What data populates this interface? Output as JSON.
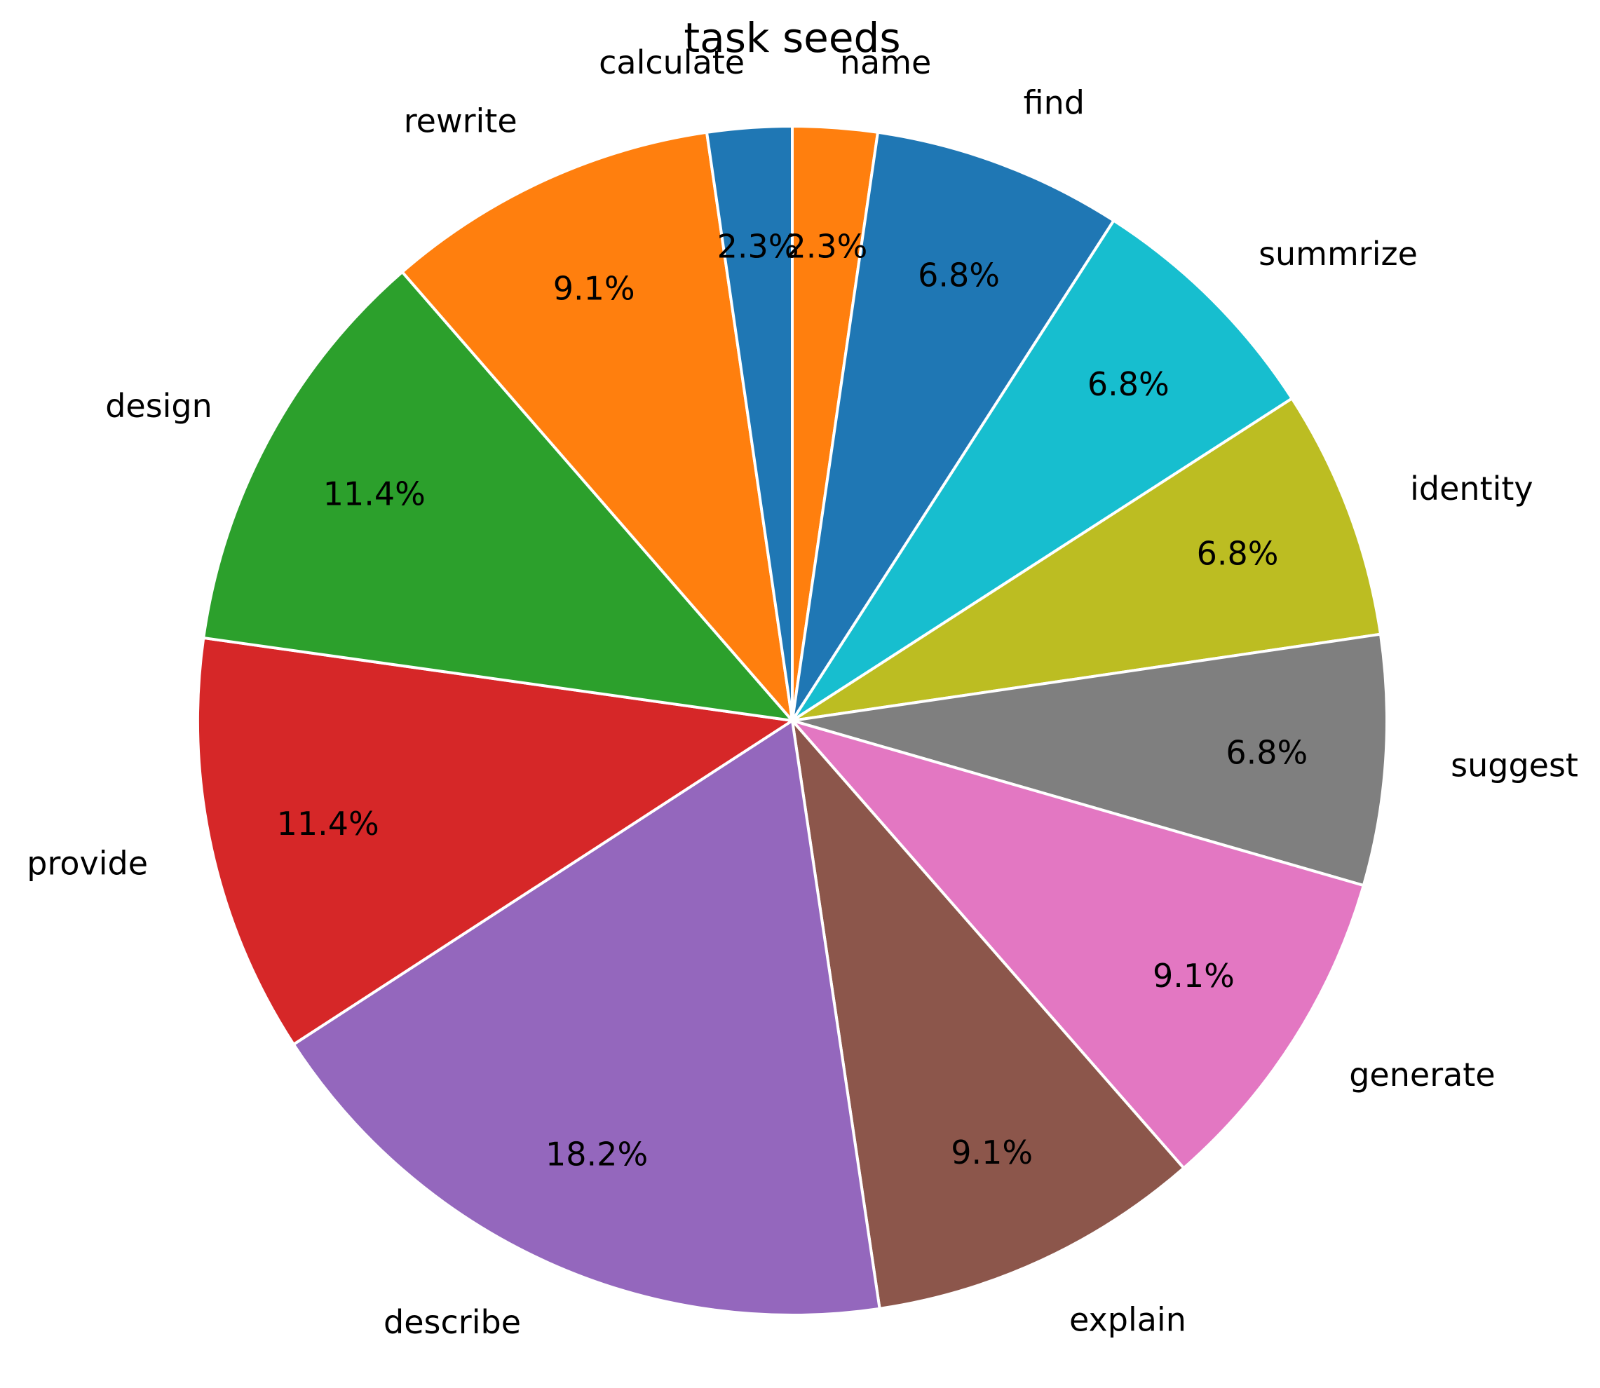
{
  "chart_data": {
    "type": "pie",
    "title": "task seeds",
    "start_angle_deg": 90,
    "direction": "clockwise",
    "slices": [
      {
        "label": "name",
        "value": 2.3,
        "pct_label": "2.3%",
        "color": "#ff7f0e"
      },
      {
        "label": "find",
        "value": 6.8,
        "pct_label": "6.8%",
        "color": "#1f77b4"
      },
      {
        "label": "summrize",
        "value": 6.8,
        "pct_label": "6.8%",
        "color": "#17becf"
      },
      {
        "label": "identity",
        "value": 6.8,
        "pct_label": "6.8%",
        "color": "#bcbd22"
      },
      {
        "label": "suggest",
        "value": 6.8,
        "pct_label": "6.8%",
        "color": "#7f7f7f"
      },
      {
        "label": "generate",
        "value": 9.1,
        "pct_label": "9.1%",
        "color": "#e377c2"
      },
      {
        "label": "explain",
        "value": 9.1,
        "pct_label": "9.1%",
        "color": "#8c564b"
      },
      {
        "label": "describe",
        "value": 18.2,
        "pct_label": "18.2%",
        "color": "#9467bd"
      },
      {
        "label": "provide",
        "value": 11.4,
        "pct_label": "11.4%",
        "color": "#d62728"
      },
      {
        "label": "design",
        "value": 11.4,
        "pct_label": "11.4%",
        "color": "#2ca02c"
      },
      {
        "label": "rewrite",
        "value": 9.1,
        "pct_label": "9.1%",
        "color": "#ff7f0e"
      },
      {
        "label": "calculate",
        "value": 2.3,
        "pct_label": "2.3%",
        "color": "#1f77b4"
      }
    ]
  }
}
